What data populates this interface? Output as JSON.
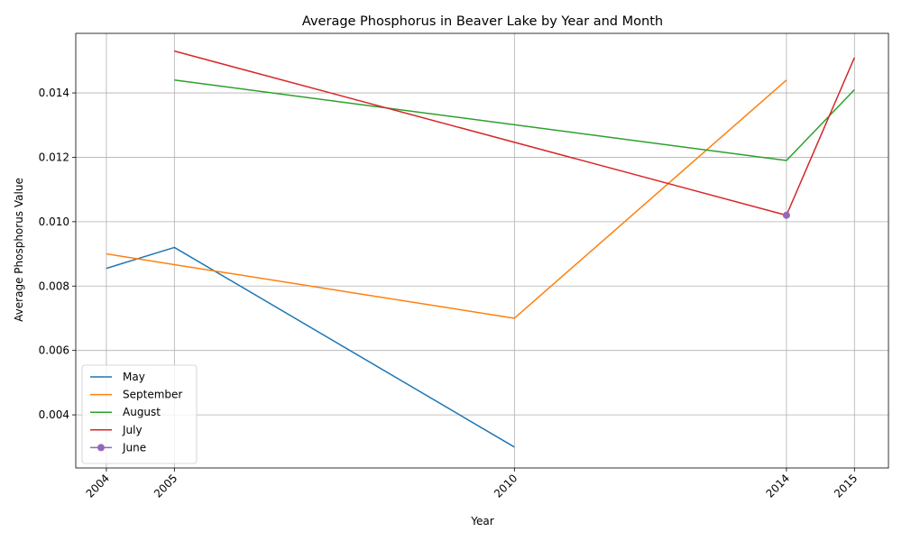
{
  "chart_data": {
    "type": "line",
    "title": "Average Phosphorus in Beaver Lake by Year and Month",
    "xlabel": "Year",
    "ylabel": "Average Phosphorus Value",
    "x_ticks": [
      "2004",
      "2005",
      "2010",
      "2014",
      "2015"
    ],
    "y_ticks": [
      "0.004",
      "0.006",
      "0.008",
      "0.010",
      "0.012",
      "0.014"
    ],
    "xlim": [
      2003.55,
      2015.5
    ],
    "ylim": [
      0.00235,
      0.01585
    ],
    "grid": true,
    "legend_position": "lower left",
    "series": [
      {
        "name": "May",
        "color": "#1f77b4",
        "marker": false,
        "x": [
          2004,
          2005,
          2010
        ],
        "y": [
          0.00855,
          0.0092,
          0.003
        ]
      },
      {
        "name": "September",
        "color": "#ff7f0e",
        "marker": false,
        "x": [
          2004,
          2010,
          2014
        ],
        "y": [
          0.009,
          0.007,
          0.0144
        ]
      },
      {
        "name": "August",
        "color": "#2ca02c",
        "marker": false,
        "x": [
          2005,
          2014,
          2015
        ],
        "y": [
          0.0144,
          0.0119,
          0.0141
        ]
      },
      {
        "name": "July",
        "color": "#d62728",
        "marker": false,
        "x": [
          2005,
          2014,
          2015
        ],
        "y": [
          0.0153,
          0.0102,
          0.0151
        ]
      },
      {
        "name": "June",
        "color": "#9467bd",
        "marker": true,
        "x": [
          2014
        ],
        "y": [
          0.0102
        ]
      }
    ]
  }
}
